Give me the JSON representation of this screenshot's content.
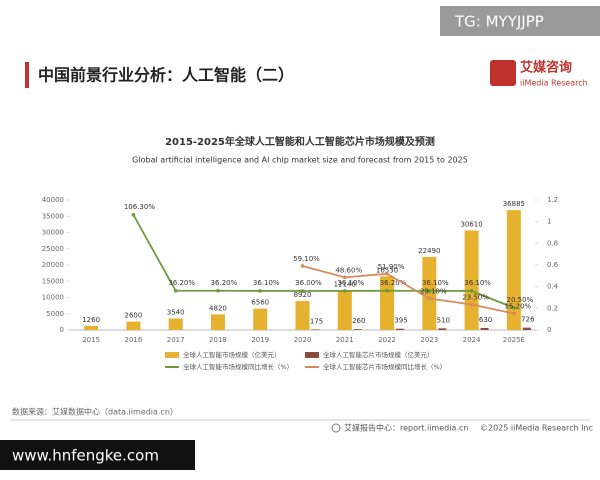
{
  "watermark": {
    "top": "TG: MYYJJPP",
    "bottom": "www.hnfengke.com"
  },
  "header": {
    "title": "中国前景行业分析：人工智能（二）"
  },
  "logo": {
    "name": "艾媒咨询",
    "sub": "iiMedia Research"
  },
  "footer": {
    "source": "数据来源：艾媒数据中心（data.iimedia.cn）",
    "report": "艾媒报告中心：report.iimedia.cn",
    "copyright": "©2025  iiMedia Research  Inc"
  },
  "chart_data": {
    "type": "bar",
    "title": "2015-2025年全球人工智能和人工智能芯片市场规模及预测",
    "subtitle": "Global artificial intelligence and AI chip market size and forecast from 2015 to 2025",
    "categories": [
      "2015",
      "2016",
      "2017",
      "2018",
      "2019",
      "2020",
      "2021",
      "2022",
      "2023",
      "2024",
      "2025E"
    ],
    "ylim": [
      0,
      40000
    ],
    "yticks": [
      0,
      5000,
      10000,
      15000,
      20000,
      25000,
      30000,
      35000,
      40000
    ],
    "y2lim": [
      0,
      1.2
    ],
    "y2ticks": [
      0,
      0.2,
      0.4,
      0.6,
      0.8,
      1,
      1.2
    ],
    "series": [
      {
        "name": "全球人工智能市场规模（亿美元）",
        "type": "bar",
        "color": "#e6b12e",
        "values": [
          1260,
          2600,
          3540,
          4820,
          6560,
          8920,
          12140,
          16530,
          22490,
          30610,
          36885
        ]
      },
      {
        "name": "全球人工智能芯片市场规模（亿美元）",
        "type": "bar",
        "color": "#8c4c3e",
        "values": [
          null,
          null,
          null,
          null,
          null,
          175,
          260,
          395,
          510,
          630,
          726
        ]
      },
      {
        "name": "全球人工智能市场规模同比增长（%）",
        "type": "line",
        "axis": "y2",
        "color": "#6f9a3c",
        "values": [
          null,
          1.063,
          0.362,
          0.362,
          0.361,
          0.36,
          0.361,
          0.362,
          0.361,
          0.361,
          0.205
        ],
        "value_labels": [
          null,
          "106.30%",
          "36.20%",
          "36.20%",
          "36.10%",
          "36.00%",
          "36.10%",
          "36.20%",
          "36.10%",
          "36.10%",
          "20.50%"
        ]
      },
      {
        "name": "全球人工智能芯片市场规模同比增长（%）",
        "type": "line",
        "axis": "y2",
        "color": "#d98a5c",
        "values": [
          null,
          null,
          null,
          null,
          null,
          0.591,
          0.486,
          0.519,
          0.291,
          0.235,
          0.152
        ],
        "value_labels": [
          null,
          null,
          null,
          null,
          null,
          "59.10%",
          "48.60%",
          "51.90%",
          "29.10%",
          "23.50%",
          "15.20%"
        ]
      }
    ]
  }
}
